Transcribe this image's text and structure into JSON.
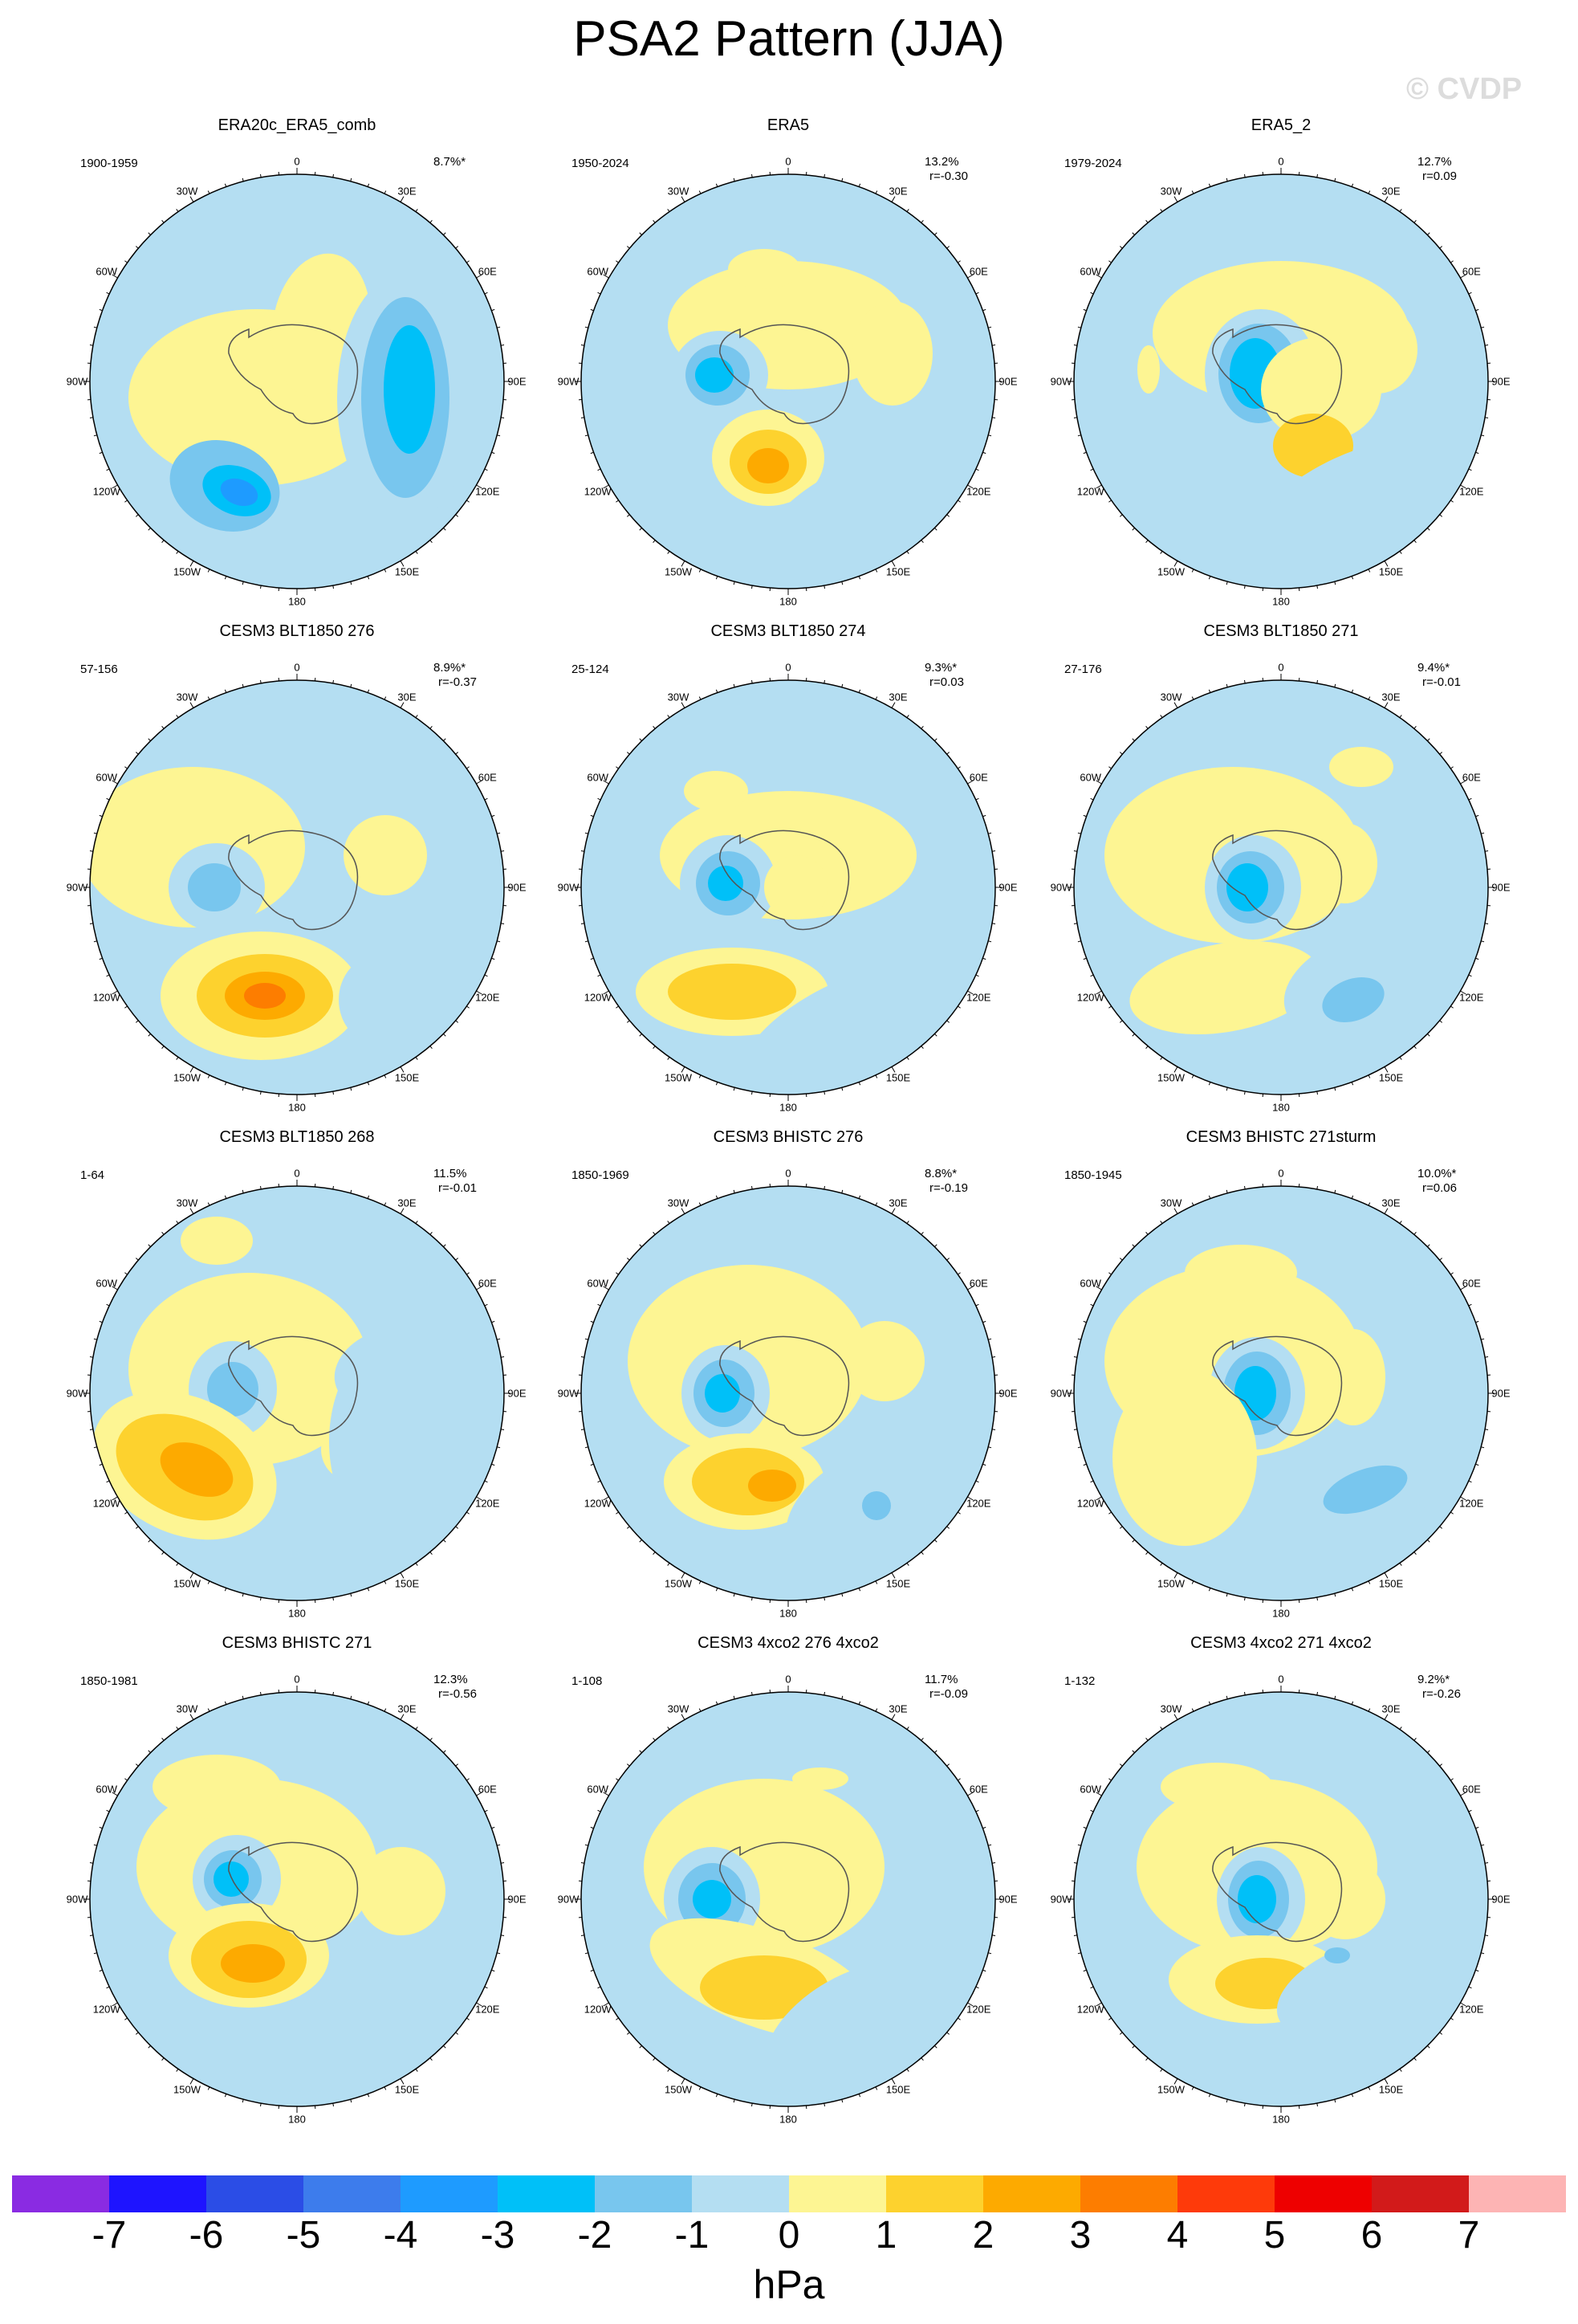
{
  "title": "PSA2 Pattern (JJA)",
  "watermark": "© CVDP",
  "units": "hPa",
  "lon_labels": [
    "0",
    "30E",
    "60E",
    "90E",
    "120E",
    "150E",
    "180",
    "150W",
    "120W",
    "90W",
    "60W",
    "30W"
  ],
  "colorbar": {
    "levels": [
      "-7",
      "-6",
      "-5",
      "-4",
      "-3",
      "-2",
      "-1",
      "0",
      "1",
      "2",
      "3",
      "4",
      "5",
      "6",
      "7"
    ],
    "colors": [
      "#8a2be2",
      "#1e14ff",
      "#2b4de6",
      "#3d7cec",
      "#1e9bff",
      "#00c0f8",
      "#78c6ee",
      "#b4def2",
      "#fdf593",
      "#fdd22e",
      "#fdaa00",
      "#fd7d00",
      "#fe3a0a",
      "#ee0000",
      "#d21a1a",
      "#fdb4b4"
    ]
  },
  "chart_data": {
    "type": "map-grid",
    "projection": "south polar stereographic",
    "field": "PSA2 pattern sea level pressure anomaly",
    "season": "JJA",
    "units": "hPa",
    "contour_levels": [
      -7,
      -6,
      -5,
      -4,
      -3,
      -2,
      -1,
      0,
      1,
      2,
      3,
      4,
      5,
      6,
      7
    ],
    "panels": [
      {
        "title": "ERA20c_ERA5_comb",
        "period": "1900-1959",
        "pct": "8.7%*",
        "corr": ""
      },
      {
        "title": "ERA5",
        "period": "1950-2024",
        "pct": "13.2%",
        "corr": "r=-0.30"
      },
      {
        "title": "ERA5_2",
        "period": "1979-2024",
        "pct": "12.7%",
        "corr": "r=0.09"
      },
      {
        "title": "CESM3 BLT1850 276",
        "period": "57-156",
        "pct": "8.9%*",
        "corr": "r=-0.37"
      },
      {
        "title": "CESM3 BLT1850 274",
        "period": "25-124",
        "pct": "9.3%*",
        "corr": "r=0.03"
      },
      {
        "title": "CESM3 BLT1850 271",
        "period": "27-176",
        "pct": "9.4%*",
        "corr": "r=-0.01"
      },
      {
        "title": "CESM3 BLT1850 268",
        "period": "1-64",
        "pct": "11.5%",
        "corr": "r=-0.01"
      },
      {
        "title": "CESM3 BHISTC 276",
        "period": "1850-1969",
        "pct": "8.8%*",
        "corr": "r=-0.19"
      },
      {
        "title": "CESM3 BHISTC 271sturm",
        "period": "1850-1945",
        "pct": "10.0%*",
        "corr": "r=0.06"
      },
      {
        "title": "CESM3 BHISTC 271",
        "period": "1850-1981",
        "pct": "12.3%",
        "corr": "r=-0.56"
      },
      {
        "title": "CESM3 4xco2 276 4xco2",
        "period": "1-108",
        "pct": "11.7%",
        "corr": "r=-0.09"
      },
      {
        "title": "CESM3 4xco2 271 4xco2",
        "period": "1-132",
        "pct": "9.2%*",
        "corr": "r=-0.26"
      }
    ]
  }
}
